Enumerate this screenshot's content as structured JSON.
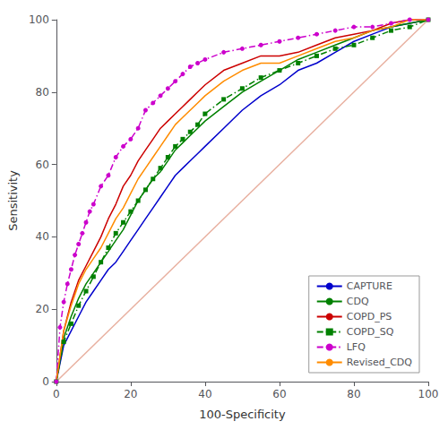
{
  "chart_data": {
    "type": "line",
    "xlabel": "100-Specificity",
    "ylabel": "Sensitivity",
    "xlim": [
      0,
      100
    ],
    "ylim": [
      0,
      100
    ],
    "xticks": [
      0,
      20,
      40,
      60,
      80,
      100
    ],
    "yticks": [
      0,
      20,
      40,
      60,
      80,
      100
    ],
    "grid": false,
    "legend": "lower right",
    "series": [
      {
        "color": "#e8b0a0",
        "line_style": "solid",
        "x": [
          0,
          100
        ],
        "values": [
          0,
          100
        ]
      },
      {
        "name": "CAPTURE",
        "color": "#0000cc",
        "line_style": "solid",
        "x": [
          0,
          2,
          4,
          6,
          8,
          10,
          12,
          14,
          16,
          18,
          20,
          22,
          24,
          26,
          28,
          30,
          32,
          34,
          36,
          38,
          40,
          45,
          50,
          55,
          60,
          65,
          70,
          75,
          80,
          85,
          90,
          95,
          100
        ],
        "values": [
          0,
          10,
          14,
          18,
          22,
          25,
          28,
          31,
          33,
          36,
          39,
          42,
          45,
          48,
          51,
          54,
          57,
          59,
          61,
          63,
          65,
          70,
          75,
          79,
          82,
          86,
          88,
          91,
          94,
          96,
          98,
          99,
          100
        ]
      },
      {
        "name": "CDQ",
        "color": "#008000",
        "line_style": "solid",
        "x": [
          0,
          2,
          4,
          6,
          8,
          10,
          12,
          14,
          16,
          18,
          20,
          22,
          24,
          26,
          28,
          30,
          32,
          34,
          36,
          38,
          40,
          45,
          50,
          55,
          60,
          65,
          70,
          75,
          80,
          85,
          90,
          95,
          100
        ],
        "values": [
          0,
          12,
          18,
          23,
          27,
          30,
          33,
          36,
          39,
          42,
          46,
          50,
          53,
          56,
          58,
          61,
          64,
          66,
          68,
          70,
          72,
          76,
          80,
          83,
          86,
          89,
          91,
          93,
          95,
          97,
          98,
          99,
          100
        ]
      },
      {
        "name": "COPD_PS",
        "color": "#cc0000",
        "line_style": "solid",
        "x": [
          0,
          2,
          4,
          6,
          8,
          10,
          12,
          14,
          16,
          18,
          20,
          22,
          24,
          26,
          28,
          30,
          32,
          34,
          36,
          38,
          40,
          45,
          50,
          55,
          60,
          65,
          70,
          75,
          80,
          85,
          90,
          95,
          100
        ],
        "values": [
          0,
          14,
          22,
          28,
          32,
          36,
          40,
          45,
          49,
          54,
          57,
          61,
          64,
          67,
          70,
          72,
          74,
          76,
          78,
          80,
          82,
          86,
          88,
          90,
          90,
          91,
          93,
          95,
          96,
          97,
          99,
          100,
          100
        ]
      },
      {
        "name": "COPD_SQ",
        "color": "#008000",
        "line_style": "dashdot",
        "marker": "square",
        "x": [
          0,
          2,
          4,
          6,
          8,
          10,
          12,
          14,
          16,
          18,
          20,
          22,
          24,
          26,
          28,
          30,
          32,
          34,
          36,
          38,
          40,
          45,
          50,
          55,
          60,
          65,
          70,
          75,
          80,
          85,
          90,
          95,
          100
        ],
        "values": [
          0,
          11,
          16,
          21,
          25,
          29,
          33,
          37,
          41,
          44,
          47,
          50,
          53,
          56,
          59,
          62,
          65,
          67,
          69,
          71,
          74,
          78,
          81,
          84,
          86,
          88,
          90,
          92,
          93,
          95,
          97,
          98,
          100
        ]
      },
      {
        "name": "LFQ",
        "color": "#cc00cc",
        "line_style": "dashdot",
        "marker": "circle",
        "x": [
          0,
          1,
          2,
          3,
          4,
          5,
          6,
          7,
          8,
          9,
          10,
          12,
          14,
          16,
          18,
          20,
          22,
          24,
          26,
          28,
          30,
          32,
          34,
          36,
          38,
          40,
          45,
          50,
          55,
          60,
          65,
          70,
          75,
          80,
          85,
          90,
          95,
          100
        ],
        "values": [
          0,
          15,
          22,
          27,
          31,
          35,
          38,
          41,
          44,
          47,
          49,
          54,
          57,
          62,
          65,
          67,
          70,
          75,
          77,
          79,
          81,
          83,
          85,
          87,
          88,
          89,
          91,
          92,
          93,
          94,
          95,
          96,
          97,
          98,
          98,
          99,
          100,
          100
        ]
      },
      {
        "name": "Revised_CDQ",
        "color": "#ff8c00",
        "line_style": "solid",
        "x": [
          0,
          2,
          4,
          6,
          8,
          10,
          12,
          14,
          16,
          18,
          20,
          22,
          24,
          26,
          28,
          30,
          32,
          34,
          36,
          38,
          40,
          45,
          50,
          55,
          60,
          65,
          70,
          75,
          80,
          85,
          90,
          95,
          100
        ],
        "values": [
          0,
          14,
          21,
          27,
          31,
          34,
          37,
          41,
          45,
          48,
          52,
          56,
          59,
          62,
          65,
          68,
          71,
          73,
          75,
          77,
          79,
          83,
          86,
          88,
          88,
          90,
          92,
          94,
          95,
          97,
          98,
          100,
          100
        ]
      }
    ]
  }
}
